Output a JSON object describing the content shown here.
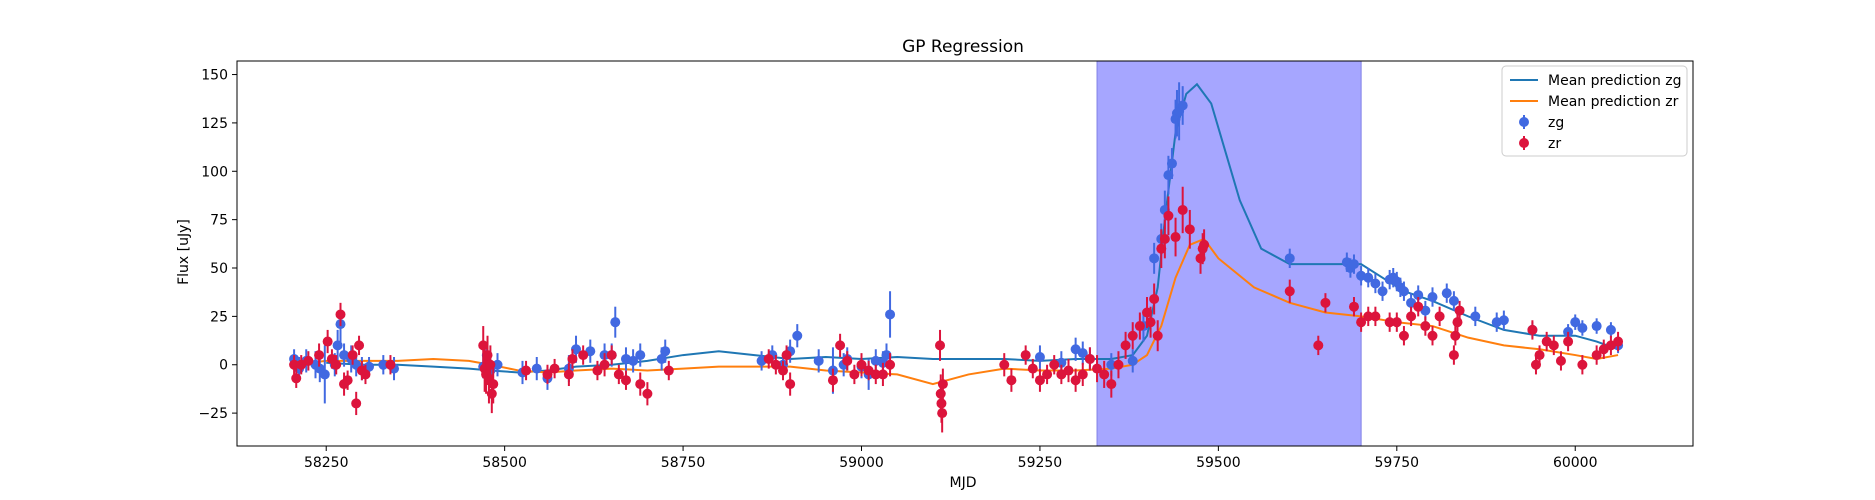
{
  "chart_data": {
    "type": "scatter",
    "title": "GP Regression",
    "xlabel": "MJD",
    "ylabel": "Flux [uJy]",
    "xlim": [
      58125,
      60165
    ],
    "ylim": [
      -42,
      157
    ],
    "xticks": [
      58250,
      58500,
      58750,
      59000,
      59250,
      59500,
      59750,
      60000
    ],
    "yticks": [
      -25,
      0,
      25,
      50,
      75,
      100,
      125,
      150
    ],
    "grid": false,
    "legend_position": "top-right",
    "highlight_span": {
      "x0": 59330,
      "x1": 59700,
      "color": "#a6a6ff"
    },
    "series": [
      {
        "name": "Mean prediction zg",
        "kind": "line",
        "color": "#1f77b4",
        "x": [
          58250,
          58300,
          58350,
          58400,
          58450,
          58480,
          58520,
          58560,
          58600,
          58650,
          58700,
          58750,
          58800,
          58850,
          58900,
          58950,
          59000,
          59050,
          59100,
          59150,
          59200,
          59250,
          59300,
          59350,
          59380,
          59400,
          59415,
          59425,
          59440,
          59455,
          59470,
          59490,
          59510,
          59530,
          59560,
          59600,
          59650,
          59700,
          59730,
          59760,
          59800,
          59850,
          59900,
          59950,
          60000,
          60030,
          60060
        ],
        "y": [
          1,
          0,
          0,
          -1,
          -2,
          -3,
          -4,
          -3,
          -1,
          0,
          2,
          5,
          7,
          5,
          3,
          4,
          3,
          4,
          3,
          3,
          3,
          2,
          3,
          3,
          5,
          15,
          40,
          75,
          120,
          140,
          145,
          135,
          110,
          85,
          60,
          52,
          52,
          52,
          45,
          38,
          33,
          25,
          18,
          15,
          15,
          12,
          8
        ]
      },
      {
        "name": "Mean prediction zr",
        "kind": "line",
        "color": "#ff7f0e",
        "x": [
          58200,
          58250,
          58300,
          58350,
          58400,
          58450,
          58480,
          58520,
          58560,
          58600,
          58650,
          58700,
          58750,
          58800,
          58850,
          58900,
          58950,
          59000,
          59050,
          59100,
          59150,
          59200,
          59250,
          59300,
          59350,
          59380,
          59400,
          59420,
          59440,
          59460,
          59480,
          59500,
          59550,
          59600,
          59650,
          59700,
          59750,
          59800,
          59850,
          59900,
          59950,
          60000,
          60030,
          60060
        ],
        "y": [
          0,
          2,
          2,
          2,
          3,
          2,
          0,
          -3,
          -4,
          -3,
          -2,
          -3,
          -2,
          -1,
          -1,
          -1,
          -3,
          -4,
          -5,
          -10,
          -5,
          -2,
          -3,
          -3,
          -2,
          0,
          5,
          20,
          45,
          62,
          65,
          55,
          40,
          32,
          27,
          25,
          22,
          20,
          14,
          10,
          8,
          5,
          3,
          5
        ]
      },
      {
        "name": "zg",
        "kind": "errorbar",
        "color": "#4169e1",
        "x": [
          58205,
          58212,
          58222,
          58235,
          58241,
          58248,
          58262,
          58266,
          58270,
          58275,
          58285,
          58292,
          58300,
          58310,
          58330,
          58345,
          58470,
          58475,
          58480,
          58490,
          58525,
          58545,
          58560,
          58590,
          58600,
          58620,
          58640,
          58650,
          58655,
          58670,
          58680,
          58690,
          58720,
          58725,
          58860,
          58875,
          58890,
          58900,
          58910,
          58940,
          58960,
          58975,
          58980,
          59000,
          59010,
          59020,
          59030,
          59035,
          59040,
          59250,
          59280,
          59300,
          59310,
          59320,
          59350,
          59380,
          59395,
          59410,
          59420,
          59425,
          59430,
          59435,
          59440,
          59442,
          59445,
          59450,
          59600,
          59680,
          59685,
          59690,
          59700,
          59710,
          59720,
          59730,
          59740,
          59745,
          59750,
          59755,
          59760,
          59770,
          59780,
          59790,
          59800,
          59820,
          59830,
          59860,
          59890,
          59900,
          59940,
          59990,
          60000,
          60010,
          60030,
          60050,
          60060
        ],
        "y": [
          3,
          -2,
          2,
          0,
          -2,
          -5,
          0,
          10,
          21,
          5,
          3,
          0,
          -2,
          -1,
          0,
          -2,
          -1,
          5,
          -3,
          0,
          -4,
          -2,
          -7,
          -2,
          8,
          7,
          5,
          5,
          22,
          3,
          2,
          5,
          3,
          7,
          2,
          5,
          0,
          7,
          15,
          2,
          -3,
          0,
          3,
          -1,
          -5,
          2,
          1,
          5,
          26,
          4,
          1,
          8,
          6,
          3,
          0,
          2,
          20,
          55,
          65,
          80,
          98,
          104,
          127,
          130,
          131,
          134,
          55,
          53,
          50,
          52,
          46,
          45,
          42,
          38,
          44,
          45,
          43,
          40,
          38,
          32,
          36,
          28,
          35,
          37,
          33,
          25,
          22,
          23,
          18,
          17,
          22,
          19,
          20,
          18,
          10
        ],
        "yerr": [
          5,
          6,
          6,
          7,
          7,
          15,
          6,
          8,
          10,
          6,
          7,
          6,
          6,
          5,
          5,
          6,
          6,
          7,
          6,
          6,
          6,
          6,
          6,
          7,
          7,
          6,
          6,
          6,
          8,
          6,
          6,
          6,
          6,
          6,
          5,
          5,
          6,
          6,
          6,
          6,
          12,
          6,
          6,
          6,
          8,
          6,
          6,
          6,
          12,
          6,
          6,
          6,
          6,
          6,
          6,
          6,
          8,
          8,
          8,
          10,
          10,
          8,
          10,
          12,
          15,
          10,
          5,
          5,
          5,
          5,
          5,
          5,
          5,
          5,
          5,
          5,
          5,
          5,
          5,
          5,
          5,
          5,
          5,
          5,
          5,
          5,
          5,
          5,
          4,
          4,
          4,
          4,
          4,
          4,
          4
        ]
      },
      {
        "name": "zr",
        "kind": "errorbar",
        "color": "#dc143c",
        "x": [
          58205,
          58208,
          58215,
          58225,
          58240,
          58252,
          58258,
          58264,
          58270,
          58275,
          58280,
          58287,
          58292,
          58296,
          58300,
          58305,
          58340,
          58470,
          58472,
          58474,
          58476,
          58478,
          58480,
          58482,
          58484,
          58530,
          58560,
          58570,
          58590,
          58595,
          58610,
          58630,
          58640,
          58650,
          58660,
          58670,
          58690,
          58700,
          58730,
          58870,
          58880,
          58890,
          58895,
          58900,
          58960,
          58970,
          58980,
          58990,
          59000,
          59010,
          59020,
          59030,
          59040,
          59110,
          59111,
          59112,
          59113,
          59114,
          59200,
          59210,
          59230,
          59240,
          59250,
          59260,
          59270,
          59280,
          59290,
          59300,
          59310,
          59320,
          59330,
          59340,
          59350,
          59360,
          59370,
          59380,
          59390,
          59400,
          59405,
          59410,
          59415,
          59420,
          59425,
          59430,
          59440,
          59450,
          59460,
          59475,
          59478,
          59480,
          59600,
          59640,
          59650,
          59690,
          59700,
          59710,
          59720,
          59740,
          59750,
          59760,
          59770,
          59780,
          59790,
          59800,
          59810,
          59830,
          59832,
          59835,
          59838,
          59940,
          59945,
          59950,
          59960,
          59970,
          59980,
          59990,
          60010,
          60030,
          60040,
          60050,
          60060
        ],
        "y": [
          0,
          -7,
          0,
          2,
          5,
          12,
          3,
          0,
          26,
          -10,
          -8,
          5,
          -20,
          10,
          -3,
          -5,
          0,
          10,
          -2,
          -5,
          5,
          -8,
          0,
          -15,
          -10,
          -3,
          -5,
          -2,
          -5,
          3,
          5,
          -3,
          0,
          5,
          -5,
          -8,
          -10,
          -15,
          -3,
          3,
          0,
          -3,
          5,
          -10,
          -8,
          10,
          2,
          -5,
          0,
          -3,
          -5,
          -5,
          0,
          10,
          -15,
          -20,
          -25,
          -10,
          0,
          -8,
          5,
          -2,
          -8,
          -5,
          0,
          -5,
          -3,
          -8,
          -5,
          3,
          -2,
          -5,
          -10,
          0,
          10,
          15,
          20,
          27,
          22,
          34,
          15,
          60,
          65,
          77,
          66,
          80,
          70,
          55,
          60,
          62,
          38,
          10,
          32,
          30,
          22,
          25,
          25,
          22,
          22,
          15,
          25,
          30,
          20,
          15,
          25,
          5,
          15,
          22,
          28,
          18,
          0,
          5,
          12,
          10,
          2,
          12,
          0,
          5,
          8,
          10,
          12
        ],
        "yerr": [
          5,
          5,
          5,
          5,
          6,
          6,
          5,
          5,
          6,
          6,
          5,
          5,
          6,
          5,
          5,
          5,
          5,
          10,
          12,
          10,
          10,
          12,
          10,
          10,
          10,
          5,
          5,
          5,
          6,
          5,
          5,
          5,
          6,
          5,
          5,
          5,
          6,
          6,
          5,
          5,
          5,
          5,
          5,
          6,
          6,
          6,
          5,
          5,
          6,
          5,
          5,
          6,
          6,
          8,
          10,
          10,
          10,
          8,
          6,
          6,
          5,
          5,
          6,
          5,
          5,
          5,
          6,
          6,
          6,
          6,
          7,
          7,
          7,
          7,
          7,
          7,
          7,
          8,
          8,
          8,
          8,
          10,
          10,
          10,
          10,
          12,
          10,
          8,
          8,
          8,
          6,
          5,
          5,
          5,
          5,
          5,
          5,
          5,
          5,
          5,
          5,
          5,
          5,
          5,
          5,
          5,
          5,
          5,
          5,
          5,
          5,
          5,
          5,
          5,
          5,
          5,
          5,
          5,
          5,
          5,
          5
        ]
      }
    ]
  }
}
